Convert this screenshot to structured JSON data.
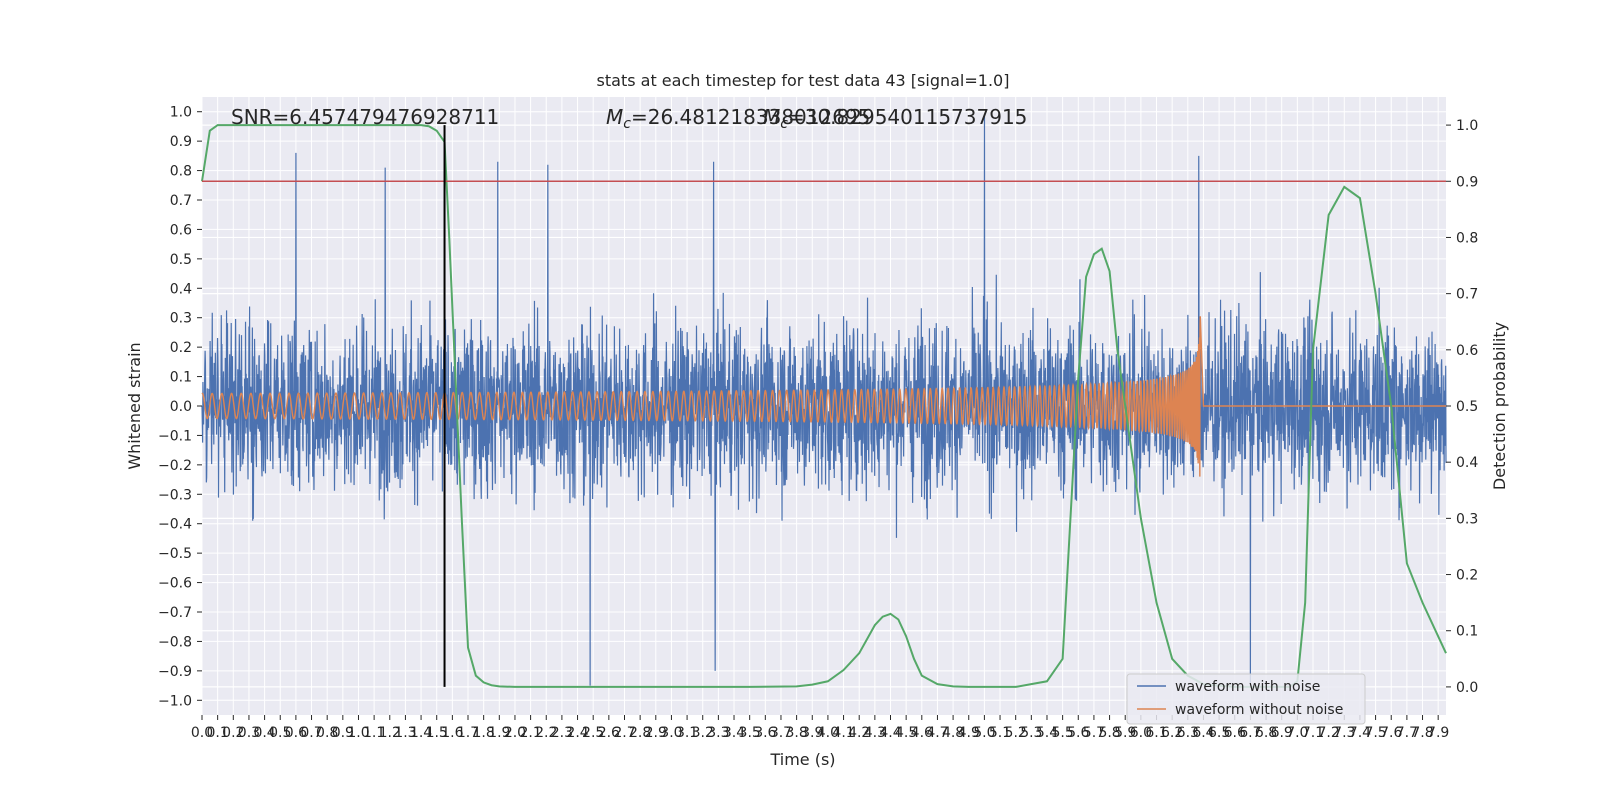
{
  "chart_data": {
    "type": "line",
    "title": "stats at each timestep for test data 43 [signal=1.0]",
    "xlabel": "Time (s)",
    "ylabel_left": "Whitened strain",
    "ylabel_right": "Detection probability",
    "xlim": [
      0.0,
      7.95
    ],
    "ylim_left": [
      -1.05,
      1.05
    ],
    "ylim_right": [
      -0.05,
      1.05
    ],
    "x_ticks": [
      0.0,
      0.1,
      0.2,
      0.3,
      0.4,
      0.5,
      0.6,
      0.7,
      0.8,
      0.9,
      1.0,
      1.1,
      1.2,
      1.3,
      1.4,
      1.5,
      1.6,
      1.7,
      1.8,
      1.9,
      2.0,
      2.1,
      2.2,
      2.3,
      2.4,
      2.5,
      2.6,
      2.7,
      2.8,
      2.9,
      3.0,
      3.1,
      3.2,
      3.3,
      3.4,
      3.5,
      3.6,
      3.7,
      3.8,
      3.9,
      4.0,
      4.1,
      4.2,
      4.3,
      4.4,
      4.5,
      4.6,
      4.7,
      4.8,
      4.9,
      5.0,
      5.1,
      5.2,
      5.3,
      5.4,
      5.5,
      5.6,
      5.7,
      5.8,
      5.9,
      6.0,
      6.1,
      6.2,
      6.3,
      6.4,
      6.5,
      6.6,
      6.7,
      6.8,
      6.9,
      7.0,
      7.1,
      7.2,
      7.3,
      7.4,
      7.5,
      7.6,
      7.7,
      7.8,
      7.9
    ],
    "y_ticks_left": [
      -1.0,
      -0.9,
      -0.8,
      -0.7,
      -0.6,
      -0.5,
      -0.4,
      -0.3,
      -0.2,
      -0.1,
      0.0,
      0.1,
      0.2,
      0.3,
      0.4,
      0.5,
      0.6,
      0.7,
      0.8,
      0.9,
      1.0
    ],
    "y_ticks_right": [
      0.0,
      0.1,
      0.2,
      0.3,
      0.4,
      0.5,
      0.6,
      0.7,
      0.8,
      0.9,
      1.0
    ],
    "annotations": {
      "snr": "SNR=6.457479476928711",
      "mc": "=26.481218338012695",
      "mc_overlap": "=30.829540115737915"
    },
    "threshold": {
      "axis": "right",
      "value": 0.9,
      "color": "#c44e52"
    },
    "marker_line": {
      "x": 1.55,
      "color": "#000000"
    },
    "grid": true,
    "legend": "lower-right",
    "colors": {
      "noisy": "#4c72b0",
      "clean": "#dd8452",
      "prob": "#55a868",
      "background": "#eaeaf2",
      "grid": "#ffffff"
    },
    "series": [
      {
        "name": "waveform with noise",
        "axis": "left",
        "x_range": [
          0.0,
          7.95
        ],
        "noise_level": 0.2,
        "envelope": [
          0.85,
          -0.75
        ],
        "notable_peaks": [
          {
            "x": 0.6,
            "y": 0.86
          },
          {
            "x": 1.17,
            "y": 0.81
          },
          {
            "x": 1.89,
            "y": 0.83
          },
          {
            "x": 2.21,
            "y": 0.82
          },
          {
            "x": 3.27,
            "y": 0.83
          },
          {
            "x": 5.0,
            "y": 0.99
          },
          {
            "x": 6.37,
            "y": 0.85
          },
          {
            "x": 2.48,
            "y": -0.95
          },
          {
            "x": 3.28,
            "y": -0.9
          },
          {
            "x": 6.7,
            "y": -0.95
          }
        ]
      },
      {
        "name": "waveform without noise",
        "axis": "left",
        "x_range": [
          0.0,
          6.38
        ],
        "merger_time": 6.38,
        "peak_amplitude": 0.32
      },
      {
        "name": "detection probability",
        "axis": "right",
        "x": [
          0.0,
          0.05,
          0.1,
          0.2,
          0.3,
          0.5,
          0.8,
          1.0,
          1.2,
          1.4,
          1.45,
          1.5,
          1.55,
          1.58,
          1.62,
          1.66,
          1.7,
          1.75,
          1.8,
          1.85,
          1.9,
          2.0,
          2.2,
          2.5,
          3.0,
          3.5,
          3.8,
          3.9,
          4.0,
          4.1,
          4.2,
          4.3,
          4.35,
          4.4,
          4.45,
          4.5,
          4.55,
          4.6,
          4.7,
          4.8,
          4.9,
          5.0,
          5.2,
          5.4,
          5.5,
          5.55,
          5.6,
          5.65,
          5.7,
          5.75,
          5.8,
          5.85,
          5.9,
          6.0,
          6.1,
          6.2,
          6.3,
          6.4,
          6.5,
          6.6,
          6.7,
          6.8,
          6.9,
          6.95,
          7.0,
          7.05,
          7.1,
          7.2,
          7.3,
          7.4,
          7.5,
          7.6,
          7.7,
          7.8,
          7.95
        ],
        "y": [
          0.9,
          0.99,
          1.0,
          1.0,
          1.0,
          1.0,
          1.0,
          1.0,
          1.0,
          1.0,
          0.998,
          0.99,
          0.97,
          0.8,
          0.55,
          0.3,
          0.07,
          0.02,
          0.008,
          0.003,
          0.001,
          0.0,
          0.0,
          0.0,
          0.0,
          0.0,
          0.001,
          0.004,
          0.01,
          0.03,
          0.06,
          0.11,
          0.125,
          0.13,
          0.12,
          0.09,
          0.05,
          0.02,
          0.005,
          0.001,
          0.0,
          0.0,
          0.0,
          0.01,
          0.05,
          0.3,
          0.55,
          0.73,
          0.77,
          0.78,
          0.74,
          0.6,
          0.5,
          0.3,
          0.15,
          0.05,
          0.02,
          0.005,
          0.002,
          0.0,
          0.0,
          0.0,
          0.0,
          0.0,
          0.01,
          0.15,
          0.6,
          0.84,
          0.89,
          0.87,
          0.7,
          0.5,
          0.22,
          0.15,
          0.06
        ]
      }
    ]
  }
}
